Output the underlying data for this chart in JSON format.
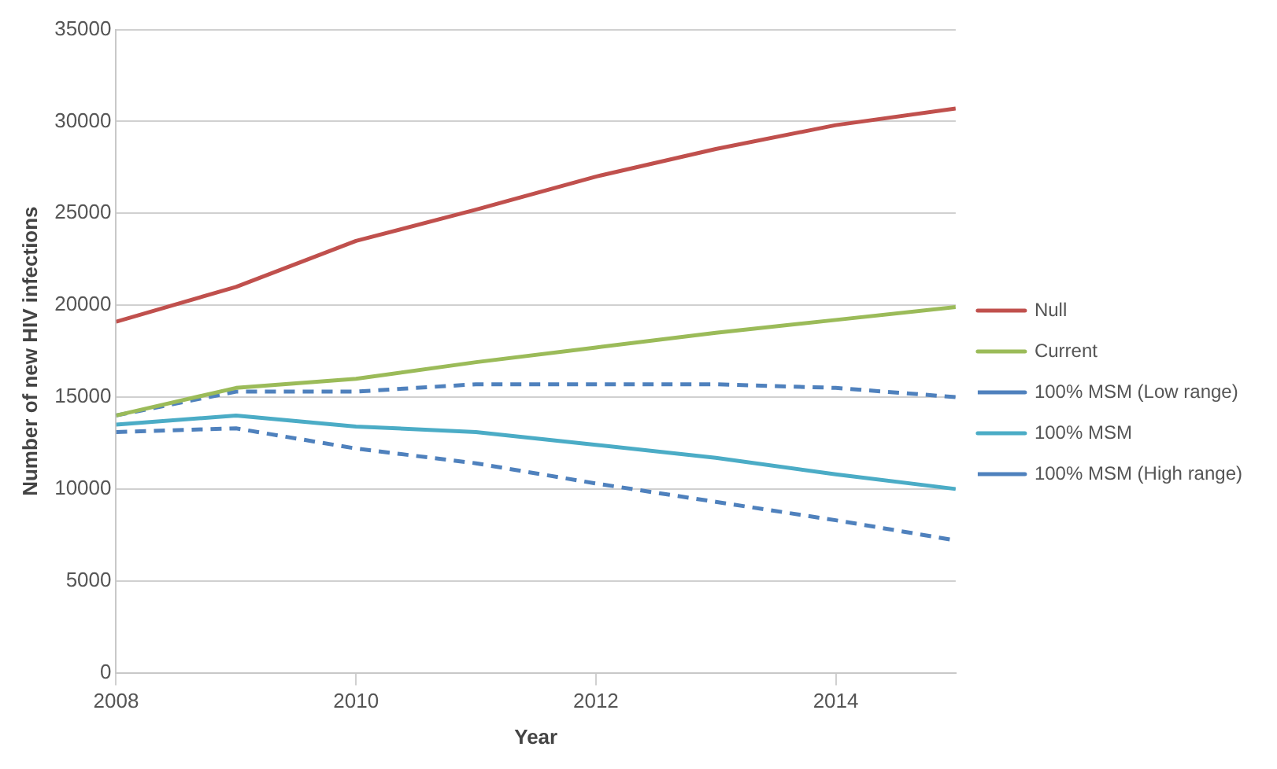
{
  "chart_data": {
    "type": "line",
    "xlabel": "Year",
    "ylabel": "Number of new HIV infections",
    "x": [
      2008,
      2009,
      2010,
      2011,
      2012,
      2013,
      2014,
      2015
    ],
    "xlim": [
      2008,
      2015
    ],
    "xticks": [
      2008,
      2010,
      2012,
      2014
    ],
    "ylim": [
      0,
      35000
    ],
    "yticks": [
      0,
      5000,
      10000,
      15000,
      20000,
      25000,
      30000,
      35000
    ],
    "grid": "y",
    "legend": "right",
    "marker": "none",
    "series": [
      {
        "name": "Null",
        "color": "#c0504d",
        "line_style": "solid",
        "values": [
          19100,
          21000,
          23500,
          25200,
          27000,
          28500,
          29800,
          30700
        ]
      },
      {
        "name": "Current",
        "color": "#9bbb59",
        "line_style": "solid",
        "values": [
          14000,
          15500,
          16000,
          16900,
          17700,
          18500,
          19200,
          19900
        ]
      },
      {
        "name": "100% MSM (Low range)",
        "color": "#4f81bd",
        "line_style": "dashed",
        "values": [
          14000,
          15300,
          15300,
          15700,
          15700,
          15700,
          15500,
          15000
        ]
      },
      {
        "name": "100% MSM",
        "color": "#4bacc6",
        "line_style": "solid",
        "values": [
          13500,
          14000,
          13400,
          13100,
          12400,
          11700,
          10800,
          10000
        ]
      },
      {
        "name": "100% MSM (High range)",
        "color": "#4f81bd",
        "line_style": "dashed",
        "values": [
          13100,
          13300,
          12200,
          11400,
          10300,
          9300,
          8300,
          7200
        ]
      }
    ]
  }
}
